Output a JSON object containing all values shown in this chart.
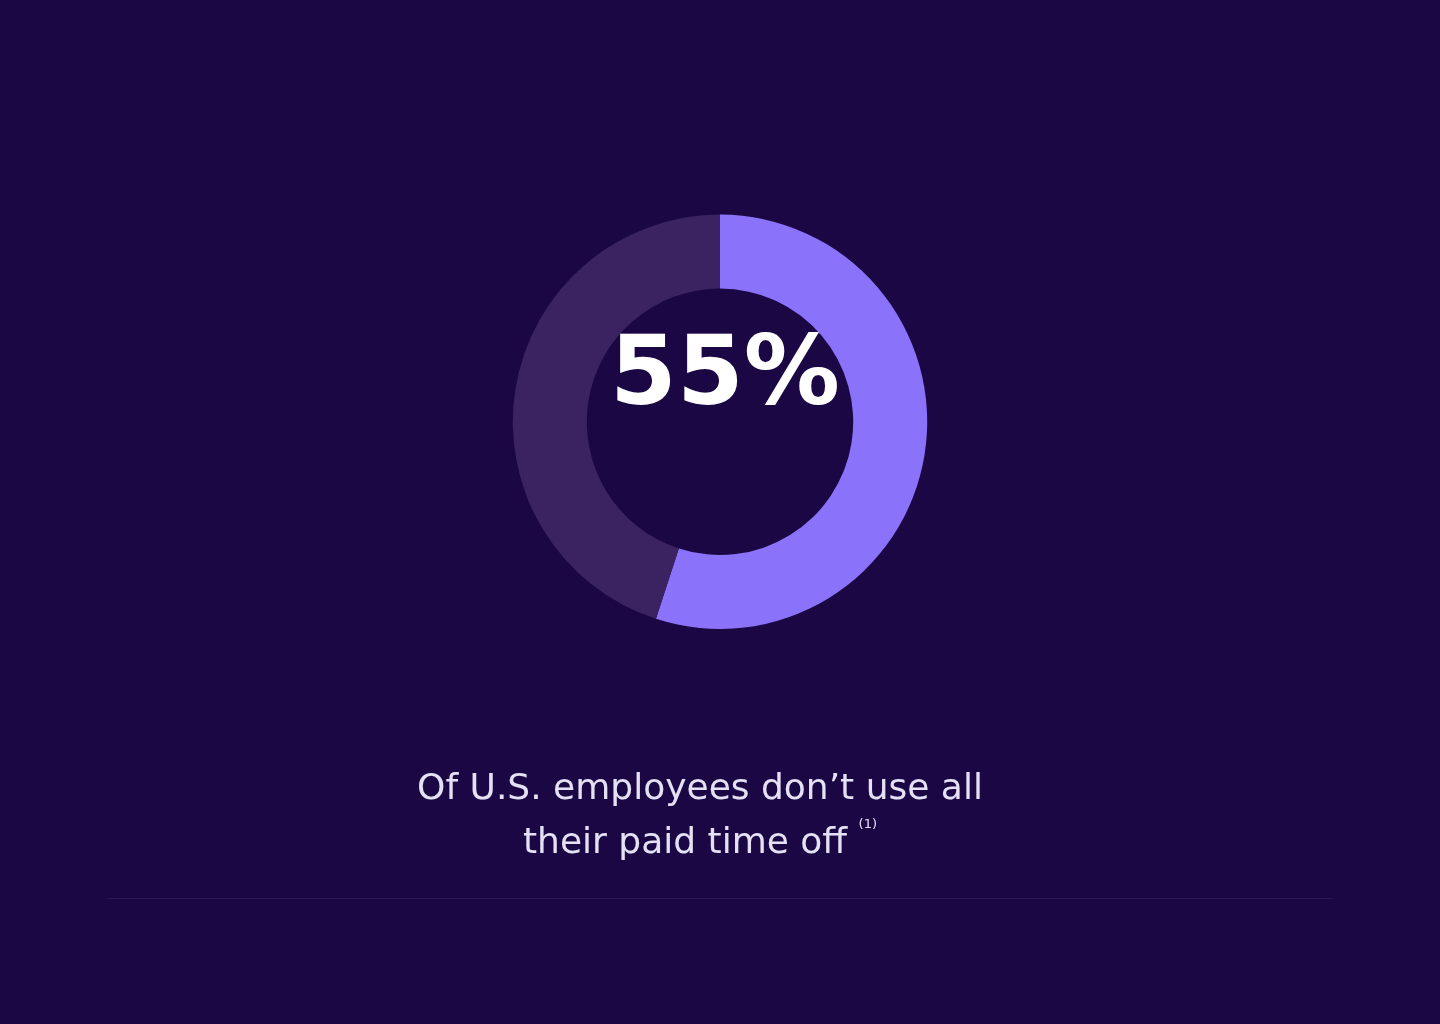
{
  "chart_data": {
    "type": "donut",
    "title": "55%",
    "categories": [
      null,
      null
    ],
    "values": [
      55,
      45
    ],
    "colors": [
      "#8b72fb",
      "#3a2360"
    ],
    "annotations": [
      "Of U.S. employees don’t use all their paid time off $^{(1)}$"
    ]
  }
}
